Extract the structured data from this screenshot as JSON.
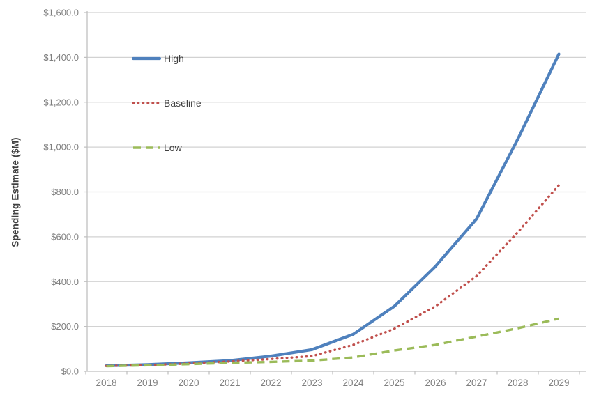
{
  "chart": {
    "y_axis": {
      "title": "Spending Estimate ($M)",
      "tick_labels": [
        "$0.0",
        "$200.0",
        "$400.0",
        "$600.0",
        "$800.0",
        "$1,000.0",
        "$1,200.0",
        "$1,400.0",
        "$1,600.0"
      ],
      "tick_values": [
        0,
        200,
        400,
        600,
        800,
        1000,
        1200,
        1400,
        1600
      ]
    },
    "x_axis": {
      "tick_labels": [
        "2018",
        "2019",
        "2020",
        "2021",
        "2022",
        "2023",
        "2024",
        "2025",
        "2026",
        "2027",
        "2028",
        "2029"
      ]
    },
    "legend": {
      "items": [
        {
          "label": "High",
          "color": "#4F81BD",
          "style": "solid"
        },
        {
          "label": "Baseline",
          "color": "#C0504D",
          "style": "dotted"
        },
        {
          "label": "Low",
          "color": "#9BBB59",
          "style": "dashed"
        }
      ]
    },
    "colors": {
      "gridline": "#D2D2D2",
      "axis_line": "#BFBFBF",
      "tick_label": "#7F7F7F",
      "legend_text": "#404040",
      "background": "#FFFFFF"
    }
  },
  "chart_data": {
    "type": "line",
    "title": "",
    "xlabel": "",
    "ylabel": "Spending Estimate ($M)",
    "categories": [
      "2018",
      "2019",
      "2020",
      "2021",
      "2022",
      "2023",
      "2024",
      "2025",
      "2026",
      "2027",
      "2028",
      "2029"
    ],
    "series": [
      {
        "name": "High",
        "color": "#4F81BD",
        "line_style": "solid",
        "values": [
          25,
          30,
          38,
          48,
          68,
          97,
          165,
          290,
          468,
          680,
          1035,
          1415
        ]
      },
      {
        "name": "Baseline",
        "color": "#C0504D",
        "line_style": "dotted",
        "values": [
          24,
          28,
          35,
          44,
          55,
          68,
          118,
          190,
          290,
          425,
          620,
          830
        ]
      },
      {
        "name": "Low",
        "color": "#9BBB59",
        "line_style": "dashed",
        "values": [
          23,
          27,
          32,
          38,
          42,
          48,
          62,
          93,
          118,
          155,
          192,
          235
        ]
      }
    ],
    "ylim": [
      0,
      1600
    ],
    "y_tick_step": 200,
    "grid": "horizontal",
    "legend_position": "inside-top-left"
  }
}
